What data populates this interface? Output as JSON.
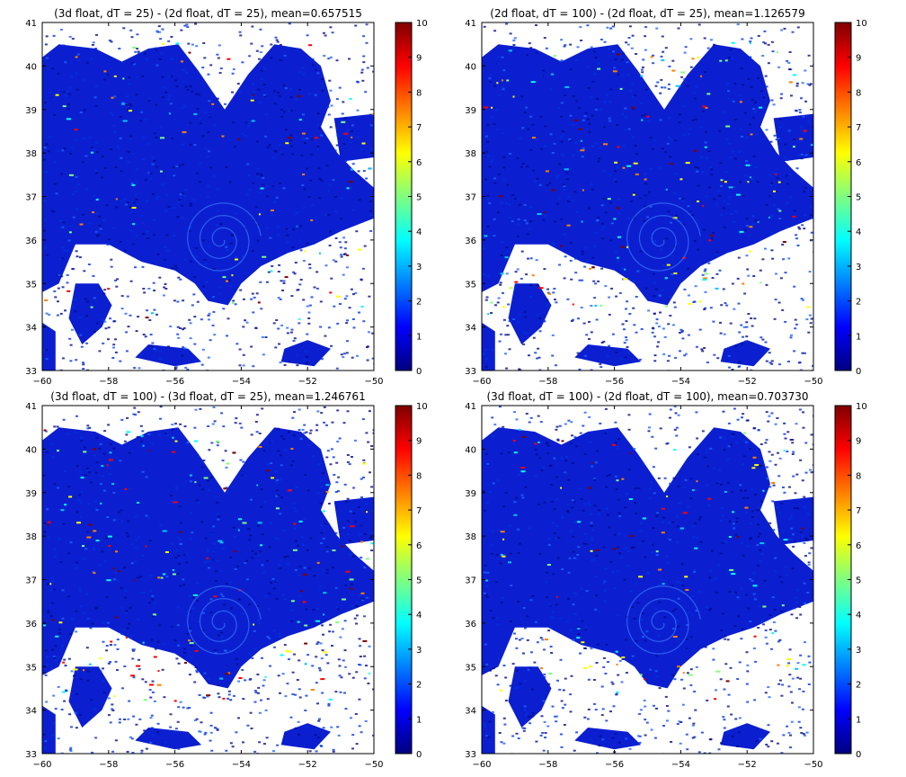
{
  "chart_data": [
    {
      "type": "heatmap",
      "title": "(3d float, dT = 25) - (2d float, dT = 25), mean=0.657515",
      "xlim": [
        -60,
        -50
      ],
      "ylim": [
        33,
        41
      ],
      "x_ticks": [
        "−60",
        "−58",
        "−56",
        "−54",
        "−52",
        "−50"
      ],
      "y_ticks": [
        "33",
        "34",
        "35",
        "36",
        "37",
        "38",
        "39",
        "40",
        "41"
      ],
      "colorbar": {
        "range": [
          0,
          10
        ],
        "ticks": [
          "0",
          "1",
          "2",
          "3",
          "4",
          "5",
          "6",
          "7",
          "8",
          "9",
          "10"
        ],
        "colormap": "jet"
      },
      "mean": 0.657515
    },
    {
      "type": "heatmap",
      "title": "(2d float, dT = 100) - (2d float, dT = 25), mean=1.126579",
      "xlim": [
        -60,
        -50
      ],
      "ylim": [
        33,
        41
      ],
      "x_ticks": [
        "−60",
        "−58",
        "−56",
        "−54",
        "−52",
        "−50"
      ],
      "y_ticks": [
        "33",
        "34",
        "35",
        "36",
        "37",
        "38",
        "39",
        "40",
        "41"
      ],
      "colorbar": {
        "range": [
          0,
          10
        ],
        "ticks": [
          "0",
          "1",
          "2",
          "3",
          "4",
          "5",
          "6",
          "7",
          "8",
          "9",
          "10"
        ],
        "colormap": "jet"
      },
      "mean": 1.126579
    },
    {
      "type": "heatmap",
      "title": "(3d float, dT = 100) - (3d float, dT = 25), mean=1.246761",
      "xlim": [
        -60,
        -50
      ],
      "ylim": [
        33,
        41
      ],
      "x_ticks": [
        "−60",
        "−58",
        "−56",
        "−54",
        "−52",
        "−50"
      ],
      "y_ticks": [
        "33",
        "34",
        "35",
        "36",
        "37",
        "38",
        "39",
        "40",
        "41"
      ],
      "colorbar": {
        "range": [
          0,
          10
        ],
        "ticks": [
          "0",
          "1",
          "2",
          "3",
          "4",
          "5",
          "6",
          "7",
          "8",
          "9",
          "10"
        ],
        "colormap": "jet"
      },
      "mean": 1.246761
    },
    {
      "type": "heatmap",
      "title": "(3d float, dT = 100) - (2d float, dT = 100), mean=0.703730",
      "xlim": [
        -60,
        -50
      ],
      "ylim": [
        33,
        41
      ],
      "x_ticks": [
        "−60",
        "−58",
        "−56",
        "−54",
        "−52",
        "−50"
      ],
      "y_ticks": [
        "33",
        "34",
        "35",
        "36",
        "37",
        "38",
        "39",
        "40",
        "41"
      ],
      "colorbar": {
        "range": [
          0,
          10
        ],
        "ticks": [
          "0",
          "1",
          "2",
          "3",
          "4",
          "5",
          "6",
          "7",
          "8",
          "9",
          "10"
        ],
        "colormap": "jet"
      },
      "mean": 0.70373
    }
  ],
  "colors": {
    "ocean_base": "#0b1fd0",
    "ocean_deep": "#020a8c",
    "land_mask": "#ffffff",
    "jet_stops": [
      "#00007f",
      "#0000ff",
      "#007fff",
      "#00ffff",
      "#7fff7f",
      "#ffff00",
      "#ff7f00",
      "#ff0000",
      "#7f0000"
    ]
  }
}
